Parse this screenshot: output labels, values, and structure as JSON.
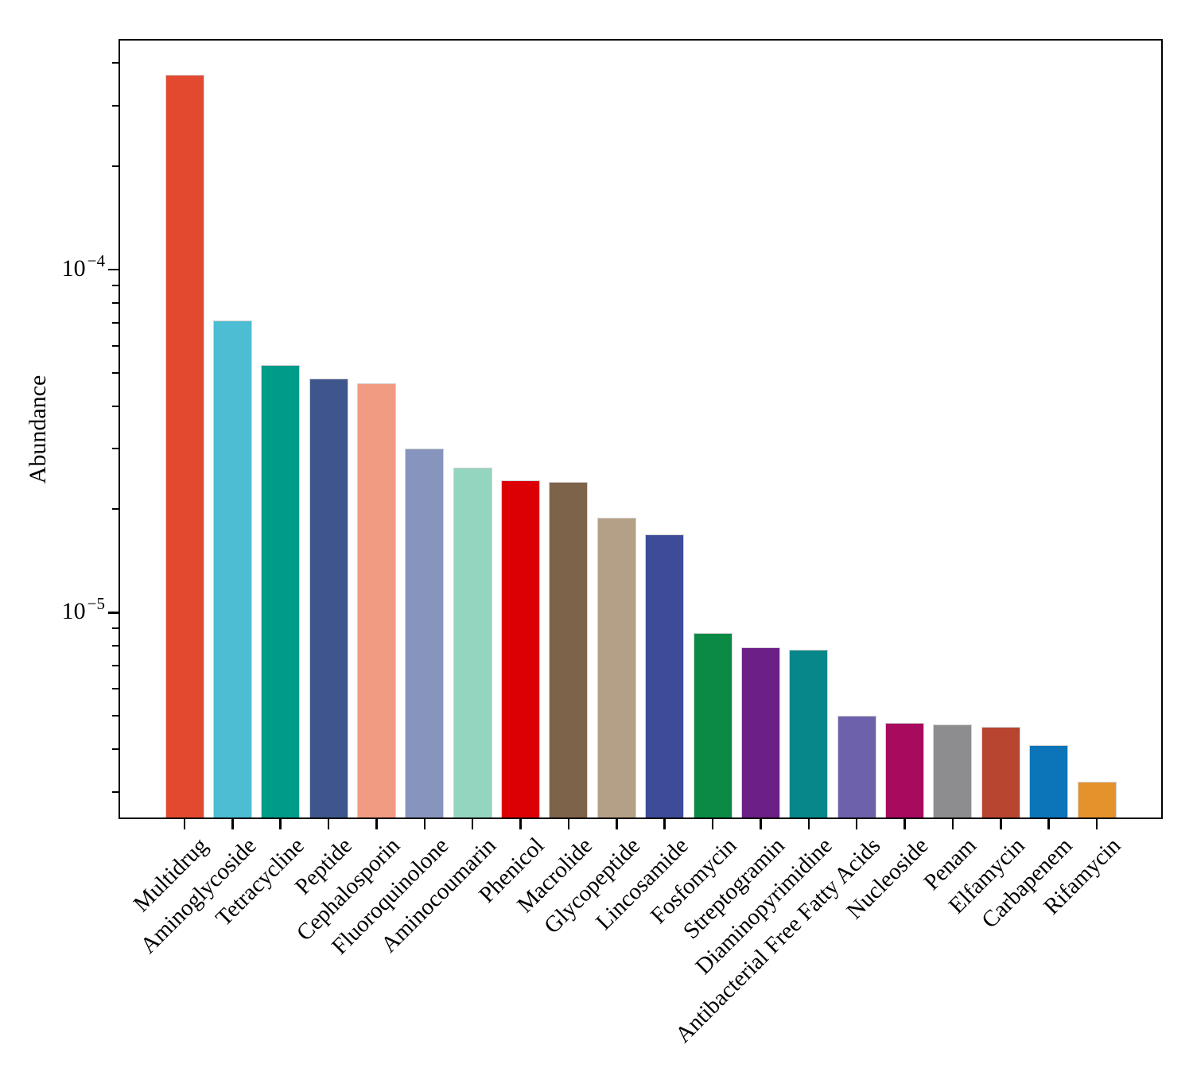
{
  "chart_data": {
    "type": "bar",
    "title": "",
    "xlabel": "",
    "ylabel": "Abundance",
    "yscale": "log",
    "ylim": [
      2.5e-06,
      0.00047
    ],
    "grid": false,
    "legend": null,
    "axis_color": "#000000",
    "background_color": "#ffffff",
    "bar_edge_color": "#d3d3d3",
    "x_tick_rotation_deg": 45,
    "categories": [
      "Multidrug",
      "Aminoglycoside",
      "Tetracycline",
      "Peptide",
      "Cephalosporin",
      "Fluoroquinolone",
      "Aminocoumarin",
      "Phenicol",
      "Macrolide",
      "Glycopeptide",
      "Lincosamide",
      "Fosfomycin",
      "Streptogramin",
      "Diaminopyrimidine",
      "Antibacterial Free Fatty Acids",
      "Nucleoside",
      "Penam",
      "Elfamycin",
      "Carbapenem",
      "Rifamycin"
    ],
    "values": [
      0.00037,
      7.1e-05,
      5.28e-05,
      4.8e-05,
      4.65e-05,
      3e-05,
      2.65e-05,
      2.43e-05,
      2.4e-05,
      1.89e-05,
      1.69e-05,
      8.7e-06,
      7.9e-06,
      7.8e-06,
      5e-06,
      4.77e-06,
      4.72e-06,
      4.65e-06,
      4.11e-06,
      3.22e-06
    ],
    "bar_colors": [
      "#e2492f",
      "#4cbdd3",
      "#009c8a",
      "#3f568c",
      "#f29b83",
      "#8795be",
      "#94d5c0",
      "#dc0005",
      "#7d634a",
      "#b3a086",
      "#3d4c99",
      "#0b8a45",
      "#6c1f86",
      "#078789",
      "#6d61ab",
      "#a80a5e",
      "#8d8d8f",
      "#b8452f",
      "#0c74b8",
      "#e3922c"
    ],
    "y_major_ticks": [
      {
        "value": 0.0001,
        "base": "10",
        "exponent": "−4"
      },
      {
        "value": 1e-05,
        "base": "10",
        "exponent": "−5"
      }
    ]
  }
}
